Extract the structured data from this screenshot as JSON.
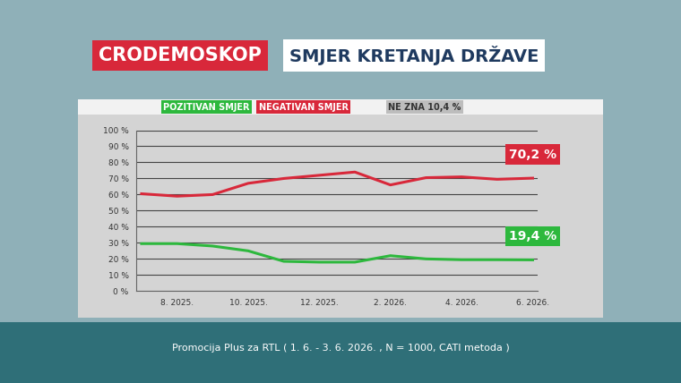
{
  "chart_data": {
    "type": "line",
    "brand": "CRODEMOSKOP",
    "title": "SMJER KRETANJA DRŽAVE",
    "source": "Promocija Plus za RTL ( 1. 6. - 3. 6. 2026. , N = 1000, CATI metoda )",
    "annotations": [
      "NE ZNA 10,4 %"
    ],
    "categories": [
      null,
      "8. 2025.",
      null,
      "10. 2025.",
      null,
      "12. 2025.",
      null,
      "2. 2026.",
      null,
      "4. 2026.",
      null,
      "6. 2026."
    ],
    "series": [
      {
        "name": "POZITIVAN SMJER",
        "color": "#2db83d",
        "values": [
          29.5,
          29.5,
          28,
          25,
          18.5,
          18,
          18,
          22,
          20,
          19.5,
          19.5,
          19.4
        ],
        "value_labels": [
          null,
          null,
          null,
          null,
          null,
          null,
          null,
          null,
          null,
          null,
          null,
          "19,4 %"
        ]
      },
      {
        "name": "NEGATIVAN SMJER",
        "color": "#d8283a",
        "values": [
          60.5,
          59,
          60,
          67,
          70,
          72,
          74,
          66,
          70.5,
          71,
          69.5,
          70.2
        ],
        "value_labels": [
          null,
          null,
          null,
          null,
          null,
          null,
          null,
          null,
          null,
          null,
          null,
          "70,2 %"
        ]
      }
    ],
    "ylim": [
      0,
      100
    ],
    "yticks": [
      {
        "value": 0,
        "label": "0 %"
      },
      {
        "value": 10,
        "label": "10 %"
      },
      {
        "value": 20,
        "label": "20 %"
      },
      {
        "value": 30,
        "label": "30 %"
      },
      {
        "value": 40,
        "label": "40 %"
      },
      {
        "value": 50,
        "label": "50 %"
      },
      {
        "value": 60,
        "label": "60 %"
      },
      {
        "value": 70,
        "label": "70 %"
      },
      {
        "value": 80,
        "label": "80 %"
      },
      {
        "value": 90,
        "label": "90 %"
      },
      {
        "value": 100,
        "label": "100 %"
      }
    ],
    "grid": true
  }
}
